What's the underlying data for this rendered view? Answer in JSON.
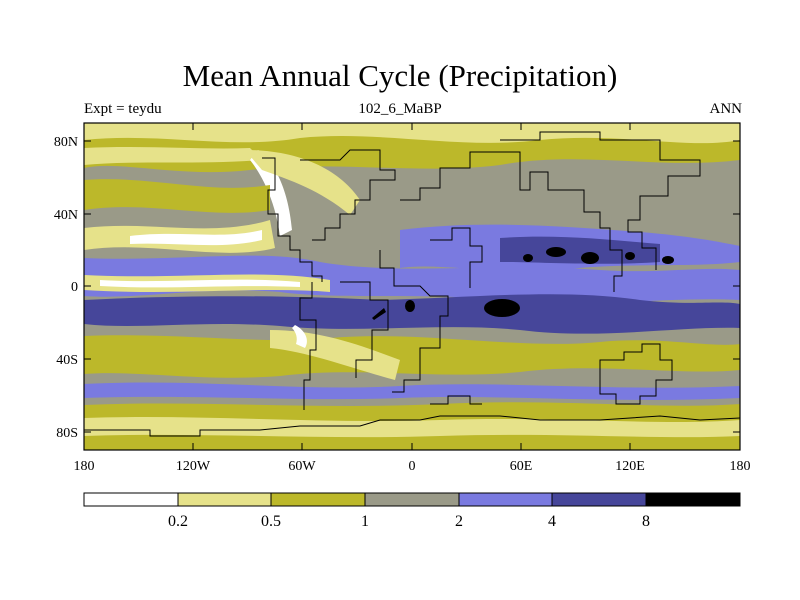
{
  "title": "Mean Annual Cycle (Precipitation)",
  "left_label": "Expt = teydu",
  "center_label": "102_6_MaBP",
  "right_label": "ANN",
  "axes": {
    "y_labels": [
      "80N",
      "40N",
      "0",
      "40S",
      "80S"
    ],
    "x_labels": [
      "180",
      "120W",
      "60W",
      "0",
      "60E",
      "120E",
      "180"
    ]
  },
  "legend": {
    "levels": [
      "0.2",
      "0.5",
      "1",
      "2",
      "4",
      "8"
    ],
    "colors": [
      "#ffffff",
      "#e6e28a",
      "#bcb82a",
      "#9a9a88",
      "#7a7ae0",
      "#46469a",
      "#000000"
    ]
  },
  "palette": {
    "white": "#ffffff",
    "pale_yellow": "#e6e28a",
    "olive": "#bcb82a",
    "grey": "#9a9a88",
    "periwinkle": "#7a7ae0",
    "navy": "#46469a",
    "black": "#000000"
  }
}
